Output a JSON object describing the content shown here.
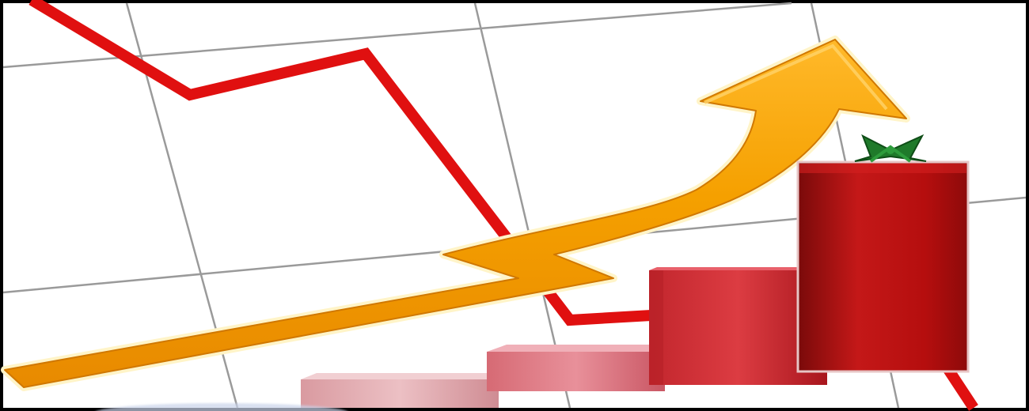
{
  "illustration": {
    "subject": "growth-chart-clipart",
    "colors": {
      "frame": "#000000",
      "background": "#ffffff",
      "grid": "#9a9a9a",
      "trend_line": "#e01010",
      "arrow_fill": "#f5a000",
      "arrow_highlight": "#ffd36a",
      "arrow_outline": "#fff4c8",
      "bar_light": "#e3a9ad",
      "bar_mid": "#e07c86",
      "bar_strong": "#d8333a",
      "bar_dark": "#b30f0f",
      "ribbon": "#1f7a2a"
    },
    "icons": [
      "rising-arrow-icon",
      "falling-line-icon",
      "bar-chart-icon",
      "ribbon-bow-icon"
    ]
  }
}
